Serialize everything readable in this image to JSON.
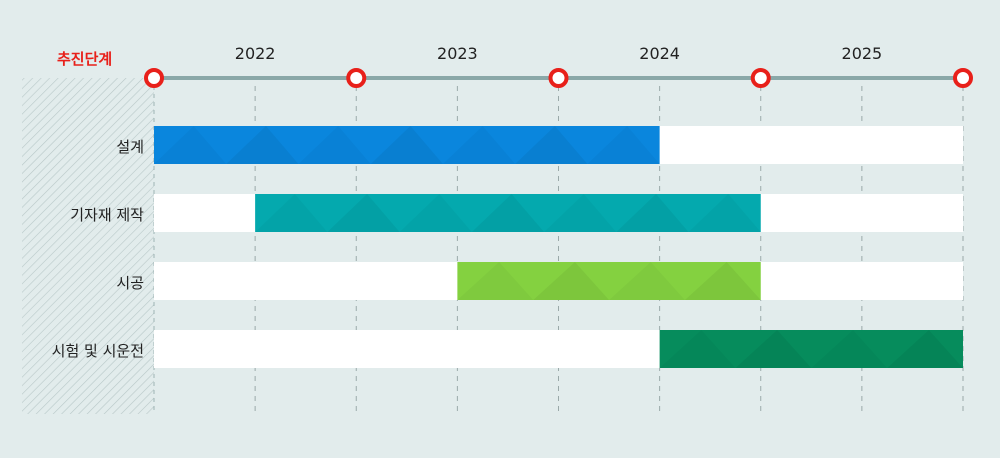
{
  "stage_title": "추진단계",
  "colors": {
    "background": "#e2ecec",
    "axis_line": "#8aa8a8",
    "marker": "#e8201a",
    "track": "#ffffff",
    "hatch": "#b8c8c8"
  },
  "chart_data": {
    "type": "gantt",
    "title": "",
    "years": [
      "2022",
      "2023",
      "2024",
      "2025"
    ],
    "x_range": [
      2021.5,
      2025.5
    ],
    "milestones": [
      2021.5,
      2022.5,
      2023.5,
      2024.5,
      2025.5
    ],
    "tasks": [
      {
        "label": "설계",
        "start": 2021.5,
        "end": 2024.0,
        "color": "#0a86dd"
      },
      {
        "label": "기자재 제작",
        "start": 2022.0,
        "end": 2024.5,
        "color": "#04a9ae"
      },
      {
        "label": "시공",
        "start": 2023.0,
        "end": 2024.5,
        "color": "#84d140"
      },
      {
        "label": "시험 및 시운전",
        "start": 2024.0,
        "end": 2025.5,
        "color": "#068c5c"
      }
    ]
  }
}
